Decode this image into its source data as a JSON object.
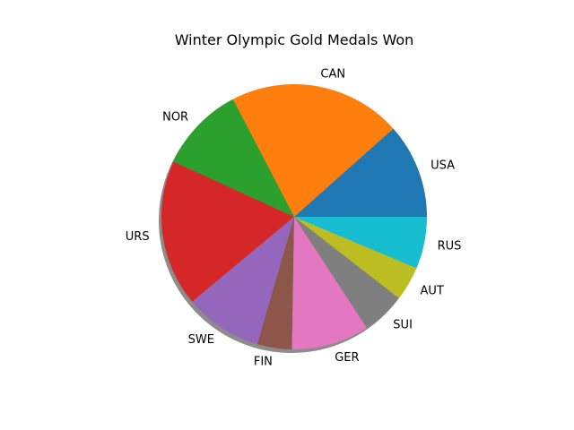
{
  "chart_data": {
    "type": "pie",
    "title": "Winter Olympic Gold Medals Won",
    "categories": [
      "USA",
      "CAN",
      "NOR",
      "URS",
      "SWE",
      "FIN",
      "GER",
      "SUI",
      "AUT",
      "RUS"
    ],
    "values": [
      11,
      20,
      10,
      17,
      9,
      4,
      9,
      5,
      4,
      6
    ],
    "colors": [
      "#1f77b4",
      "#ff7f0e",
      "#2ca02c",
      "#d62728",
      "#9467bd",
      "#8c564b",
      "#e377c2",
      "#7f7f7f",
      "#bcbd22",
      "#17becf"
    ],
    "start_angle_deg": 0,
    "direction": "counterclockwise",
    "shadow": true
  }
}
